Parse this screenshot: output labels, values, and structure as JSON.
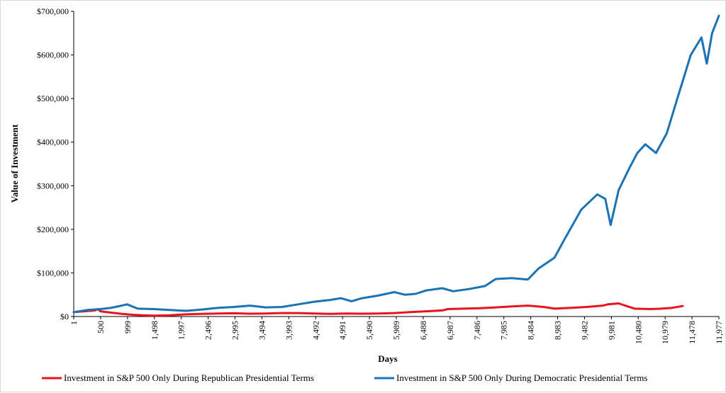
{
  "chart_data": {
    "type": "line",
    "title": "",
    "xlabel": "Days",
    "ylabel": "Value of Investment",
    "xlim": [
      1,
      12077
    ],
    "ylim": [
      0,
      700000
    ],
    "x_tick_labels": [
      "1",
      "500",
      "999",
      "1,498",
      "1,997",
      "2,496",
      "2,995",
      "3,494",
      "3,993",
      "4,492",
      "4,991",
      "5,490",
      "5,989",
      "6,488",
      "6,987",
      "7,486",
      "7,985",
      "8,484",
      "8,983",
      "9,482",
      "9,981",
      "10,480",
      "10,979",
      "11,478",
      "11,977"
    ],
    "y_ticks": [
      0,
      100000,
      200000,
      300000,
      400000,
      500000,
      600000,
      700000
    ],
    "y_tick_labels": [
      "$0",
      "$100,000",
      "$200,000",
      "$300,000",
      "$400,000",
      "$500,000",
      "$600,000",
      "$700,000"
    ],
    "series": [
      {
        "name": "Investment in S&P 500 Only During Republican Presidential Terms",
        "color": "#e8141c",
        "x": [
          1,
          200,
          400,
          450,
          500,
          700,
          900,
          1100,
          1300,
          1500,
          1800,
          2100,
          2400,
          2700,
          3000,
          3300,
          3600,
          3900,
          4200,
          4500,
          4800,
          5100,
          5400,
          5700,
          6000,
          6300,
          6600,
          6900,
          7000,
          7300,
          7600,
          7900,
          8200,
          8500,
          8800,
          9000,
          9300,
          9600,
          9900,
          10000,
          10200,
          10300,
          10500,
          10800,
          11000,
          11200,
          11400
        ],
        "y": [
          10000,
          12000,
          14000,
          17000,
          12000,
          9000,
          6000,
          4000,
          3000,
          2000,
          3000,
          5000,
          6000,
          7000,
          7500,
          6500,
          7000,
          8000,
          8000,
          7000,
          6000,
          7000,
          6500,
          7000,
          8000,
          10000,
          12000,
          14000,
          17000,
          18000,
          19000,
          21000,
          23000,
          25000,
          22000,
          18000,
          20000,
          22000,
          25000,
          28000,
          30000,
          26000,
          18000,
          17000,
          18000,
          20000,
          24000
        ]
      },
      {
        "name": "Investment in S&P 500 Only During Democratic Presidential Terms",
        "color": "#1a73b5",
        "x": [
          1,
          250,
          500,
          700,
          900,
          1000,
          1200,
          1500,
          1800,
          2100,
          2400,
          2700,
          3000,
          3300,
          3600,
          3900,
          4200,
          4500,
          4800,
          5000,
          5200,
          5400,
          5700,
          6000,
          6200,
          6400,
          6600,
          6900,
          7100,
          7400,
          7700,
          7900,
          8200,
          8500,
          8700,
          9000,
          9200,
          9500,
          9800,
          9950,
          10050,
          10200,
          10400,
          10550,
          10700,
          10900,
          11100,
          11300,
          11550,
          11750,
          11850,
          11950,
          12077
        ],
        "y": [
          10000,
          15000,
          17000,
          20000,
          25000,
          28000,
          18000,
          17000,
          15000,
          13000,
          16000,
          20000,
          22000,
          25000,
          21000,
          22000,
          28000,
          34000,
          38000,
          42000,
          35000,
          42000,
          48000,
          56000,
          50000,
          52000,
          60000,
          65000,
          58000,
          63000,
          70000,
          86000,
          88000,
          85000,
          110000,
          135000,
          180000,
          245000,
          280000,
          270000,
          210000,
          290000,
          340000,
          375000,
          395000,
          375000,
          420000,
          500000,
          600000,
          640000,
          580000,
          650000,
          690000
        ]
      }
    ],
    "legend_position": "bottom",
    "grid": false
  }
}
